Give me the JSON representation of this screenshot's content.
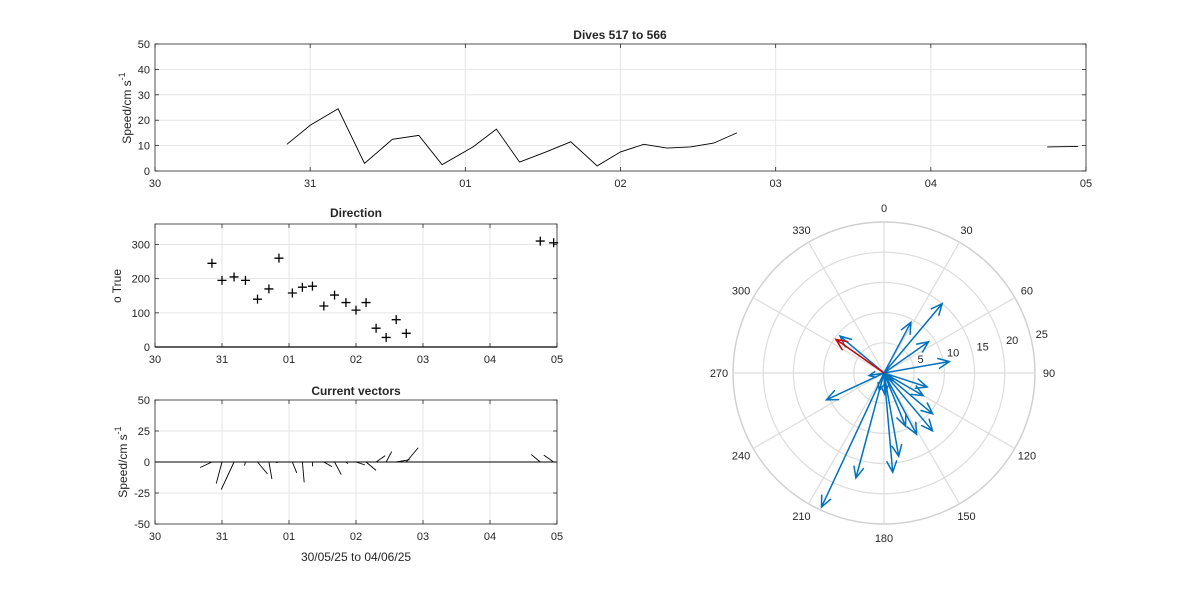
{
  "chart_data": [
    {
      "type": "line",
      "title": "Dives 517 to 566",
      "ylabel": "Speed/cm s",
      "ylabel_sup": "-1",
      "ylim": [
        0,
        50
      ],
      "yticks": [
        "0",
        "10",
        "20",
        "30",
        "40",
        "50"
      ],
      "xlim": [
        0,
        6
      ],
      "xtick_labels": [
        "30",
        "31",
        "01",
        "02",
        "03",
        "04",
        "05"
      ],
      "grid": true,
      "series": [
        {
          "x": [
            0.85,
            1.0,
            1.18,
            1.35,
            1.53,
            1.7,
            1.85,
            2.05,
            2.2,
            2.35,
            2.52,
            2.68,
            2.85,
            3.0,
            3.15,
            3.3,
            3.45,
            3.6,
            3.75,
            3.88
          ],
          "y": [
            10.5,
            18,
            24.5,
            3,
            12.5,
            14,
            2.5,
            9.5,
            16.5,
            3.5,
            7.5,
            11.5,
            2,
            7.5,
            10.5,
            9,
            9.5,
            11,
            15,
            null
          ]
        },
        {
          "x": [
            5.75,
            5.95
          ],
          "y": [
            9.5,
            9.7
          ]
        }
      ]
    },
    {
      "type": "scatter",
      "title": "Direction",
      "ylabel": "o True",
      "ylim": [
        0,
        360
      ],
      "yticks": [
        "0",
        "100",
        "200",
        "300"
      ],
      "xlim": [
        0,
        6
      ],
      "xtick_labels": [
        "30",
        "31",
        "01",
        "02",
        "03",
        "04",
        "05"
      ],
      "grid": true,
      "x": [
        0.85,
        1.0,
        1.18,
        1.35,
        1.53,
        1.7,
        1.85,
        2.05,
        2.2,
        2.35,
        2.52,
        2.68,
        2.85,
        3.0,
        3.15,
        3.3,
        3.45,
        3.6,
        3.75,
        3.88,
        5.75,
        5.95
      ],
      "y": [
        245,
        195,
        205,
        195,
        140,
        170,
        260,
        158,
        175,
        178,
        120,
        152,
        130,
        108,
        130,
        55,
        28,
        80,
        40,
        null,
        310,
        305
      ]
    },
    {
      "type": "quiver",
      "title": "Current vectors",
      "ylabel": "Speed/cm s",
      "ylabel_sup": "-1",
      "xlabel": "30/05/25 to 04/06/25",
      "ylim": [
        -50,
        50
      ],
      "yticks": [
        "-50",
        "-25",
        "0",
        "25",
        "50"
      ],
      "xlim": [
        0,
        6
      ],
      "xtick_labels": [
        "30",
        "31",
        "01",
        "02",
        "03",
        "04",
        "05"
      ],
      "grid": true,
      "x": [
        0.85,
        1.0,
        1.18,
        1.35,
        1.53,
        1.7,
        1.85,
        2.05,
        2.2,
        2.35,
        2.52,
        2.68,
        2.85,
        3.0,
        3.15,
        3.3,
        3.45,
        3.6,
        3.75,
        5.75,
        5.95
      ],
      "speed": [
        10.5,
        18,
        24.5,
        3,
        12.5,
        14,
        2.5,
        9.5,
        16.5,
        3.5,
        7.5,
        11.5,
        2,
        7.5,
        10.5,
        9,
        9.5,
        11,
        15,
        9.5,
        9.7
      ],
      "direction": [
        245,
        195,
        205,
        195,
        140,
        170,
        260,
        158,
        175,
        178,
        120,
        152,
        130,
        108,
        130,
        55,
        28,
        80,
        40,
        310,
        305
      ]
    },
    {
      "type": "compass",
      "rlim": [
        0,
        25
      ],
      "r_tick_labels": [
        "5",
        "10",
        "15",
        "20",
        "25"
      ],
      "angle_tick_labels": [
        "0",
        "30",
        "60",
        "90",
        "120",
        "150",
        "180",
        "210",
        "240",
        "270",
        "300",
        "330"
      ],
      "vectors": [
        {
          "speed": 10.5,
          "direction": 245
        },
        {
          "speed": 18,
          "direction": 195
        },
        {
          "speed": 24.5,
          "direction": 205
        },
        {
          "speed": 3,
          "direction": 195
        },
        {
          "speed": 12.5,
          "direction": 140
        },
        {
          "speed": 14,
          "direction": 170
        },
        {
          "speed": 2.5,
          "direction": 260
        },
        {
          "speed": 9.5,
          "direction": 158
        },
        {
          "speed": 16.5,
          "direction": 175
        },
        {
          "speed": 3.5,
          "direction": 178
        },
        {
          "speed": 7.5,
          "direction": 120
        },
        {
          "speed": 11.5,
          "direction": 152
        },
        {
          "speed": 2,
          "direction": 130
        },
        {
          "speed": 7.5,
          "direction": 108
        },
        {
          "speed": 10.5,
          "direction": 130
        },
        {
          "speed": 9,
          "direction": 55
        },
        {
          "speed": 9.5,
          "direction": 28
        },
        {
          "speed": 11,
          "direction": 80
        },
        {
          "speed": 15,
          "direction": 40
        },
        {
          "speed": 9.5,
          "direction": 310
        },
        {
          "speed": 9.7,
          "direction": 305
        }
      ],
      "highlight_index": 20,
      "vector_color": "#0072BD",
      "highlight_color": "#D40000"
    }
  ]
}
